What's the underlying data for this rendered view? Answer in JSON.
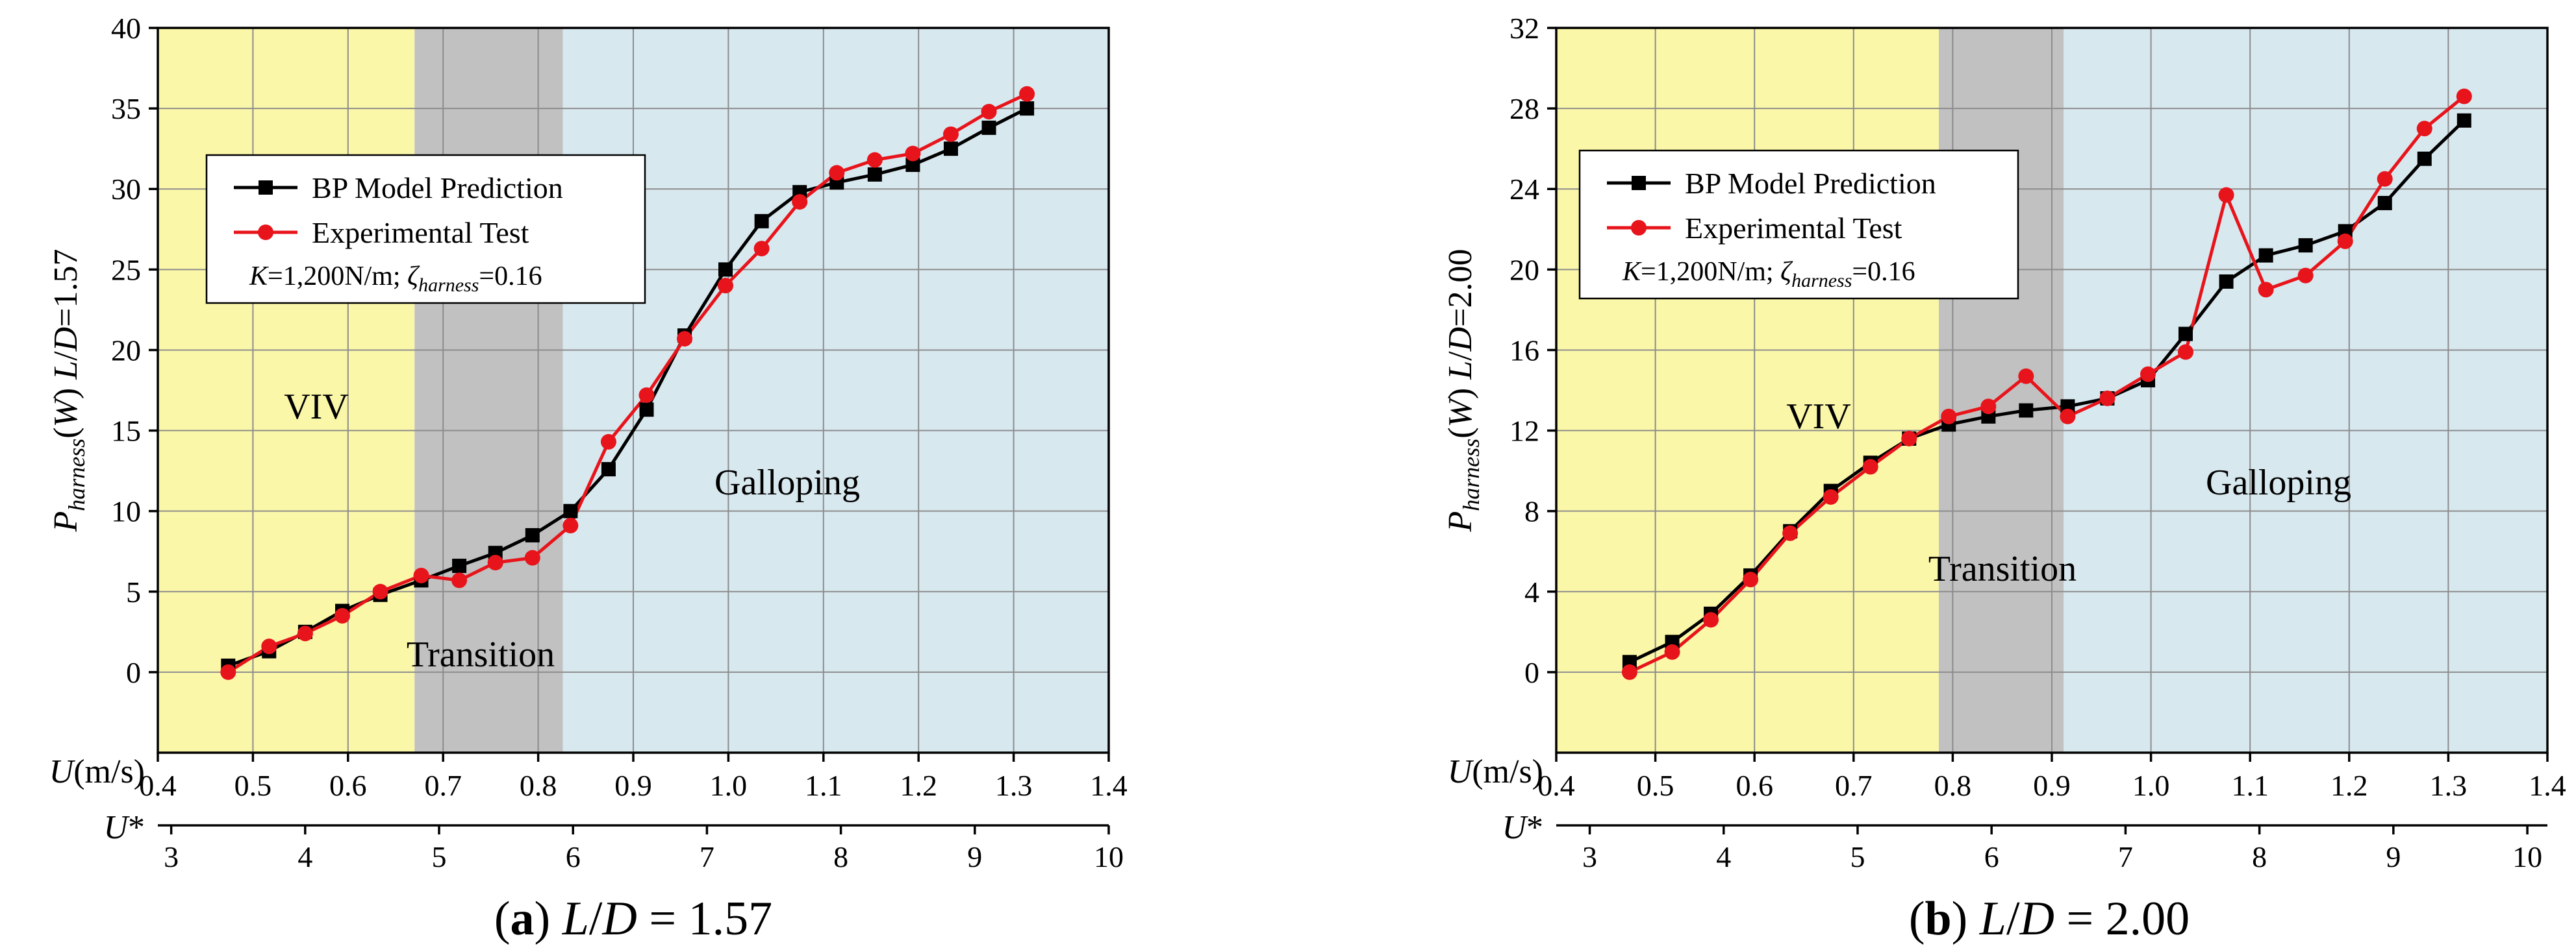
{
  "chart_data": [
    {
      "type": "line",
      "panel": "a",
      "caption": {
        "letter": "(a)",
        "text": "L/D = 1.57"
      },
      "xlabel": "U(m/s)",
      "xlabel2": "U*",
      "ylabel": "P_harness(W)  L/D=1.57",
      "ylim": [
        -5,
        40
      ],
      "yticks": [
        0,
        5,
        10,
        15,
        20,
        25,
        30,
        35,
        40
      ],
      "xlim": [
        0.4,
        1.4
      ],
      "xticks": [
        "0.4",
        "0.5",
        "0.6",
        "0.7",
        "0.8",
        "0.9",
        "1.0",
        "1.1",
        "1.2",
        "1.3",
        "1.4"
      ],
      "x2lim": [
        2.9,
        10.0
      ],
      "x2ticks": [
        "3",
        "4",
        "5",
        "6",
        "7",
        "8",
        "9",
        "10"
      ],
      "regions": [
        {
          "label": "VIV",
          "from": 0.4,
          "to": 0.67,
          "color": "#fbf7a9"
        },
        {
          "label": "Transition",
          "from": 0.67,
          "to": 0.826,
          "color": "#c1c1c1"
        },
        {
          "label": "Galloping",
          "from": 0.826,
          "to": 1.4,
          "color": "#d8e8ef"
        }
      ],
      "legend": {
        "entries": [
          "BP Model Prediction",
          "Experimental Test"
        ],
        "params": "K=1,200N/m;  ζharness=0.16",
        "position": "upper-left"
      },
      "series": [
        {
          "name": "BP Model Prediction",
          "color": "#000000",
          "marker": "square",
          "x": [
            0.474,
            0.517,
            0.555,
            0.594,
            0.634,
            0.677,
            0.717,
            0.755,
            0.794,
            0.834,
            0.874,
            0.914,
            0.954,
            0.997,
            1.035,
            1.075,
            1.114,
            1.154,
            1.194,
            1.234,
            1.274,
            1.314
          ],
          "values": [
            0.4,
            1.3,
            2.5,
            3.8,
            4.8,
            5.7,
            6.6,
            7.4,
            8.5,
            10.0,
            12.6,
            16.3,
            20.9,
            25.0,
            28.0,
            29.8,
            30.4,
            30.9,
            31.5,
            32.5,
            33.8,
            35.0
          ]
        },
        {
          "name": "Experimental Test",
          "color": "#e8141b",
          "marker": "circle",
          "x": [
            0.474,
            0.517,
            0.555,
            0.594,
            0.634,
            0.677,
            0.717,
            0.755,
            0.794,
            0.834,
            0.874,
            0.914,
            0.954,
            0.997,
            1.035,
            1.075,
            1.114,
            1.154,
            1.194,
            1.234,
            1.274,
            1.314
          ],
          "values": [
            0.0,
            1.6,
            2.4,
            3.5,
            5.0,
            6.0,
            5.7,
            6.8,
            7.1,
            9.1,
            14.3,
            17.2,
            20.7,
            24.0,
            26.3,
            29.2,
            31.0,
            31.8,
            32.2,
            33.4,
            34.8,
            35.9
          ]
        }
      ]
    },
    {
      "type": "line",
      "panel": "b",
      "caption": {
        "letter": "(b)",
        "text": "L/D = 2.00"
      },
      "xlabel": "U(m/s)",
      "xlabel2": "U*",
      "ylabel": "P_harness(W)  L/D=2.00",
      "ylim": [
        -4,
        32
      ],
      "yticks": [
        0,
        4,
        8,
        12,
        16,
        20,
        24,
        28,
        32
      ],
      "xlim": [
        0.4,
        1.4
      ],
      "xticks": [
        "0.4",
        "0.5",
        "0.6",
        "0.7",
        "0.8",
        "0.9",
        "1.0",
        "1.1",
        "1.2",
        "1.3",
        "1.4"
      ],
      "x2lim": [
        2.75,
        10.15
      ],
      "x2ticks": [
        "3",
        "4",
        "5",
        "6",
        "7",
        "8",
        "9",
        "10"
      ],
      "regions": [
        {
          "label": "VIV",
          "from": 0.4,
          "to": 0.786,
          "color": "#fbf7a9"
        },
        {
          "label": "Transition",
          "from": 0.786,
          "to": 0.912,
          "color": "#c1c1c1"
        },
        {
          "label": "Galloping",
          "from": 0.912,
          "to": 1.4,
          "color": "#d8e8ef"
        }
      ],
      "legend": {
        "entries": [
          "BP Model Prediction",
          "Experimental Test"
        ],
        "params": "K=1,200N/m;  ζharness=0.16",
        "position": "upper-left"
      },
      "series": [
        {
          "name": "BP Model Prediction",
          "color": "#000000",
          "marker": "square",
          "x": [
            0.474,
            0.517,
            0.556,
            0.596,
            0.636,
            0.677,
            0.717,
            0.756,
            0.796,
            0.836,
            0.874,
            0.916,
            0.956,
            0.997,
            1.035,
            1.076,
            1.116,
            1.156,
            1.196,
            1.236,
            1.276,
            1.316
          ],
          "values": [
            0.5,
            1.5,
            2.9,
            4.8,
            7.0,
            9.0,
            10.4,
            11.6,
            12.3,
            12.7,
            13.0,
            13.2,
            13.6,
            14.5,
            16.8,
            19.4,
            20.7,
            21.2,
            21.9,
            23.3,
            25.5,
            27.4
          ]
        },
        {
          "name": "Experimental Test",
          "color": "#e8141b",
          "marker": "circle",
          "x": [
            0.474,
            0.517,
            0.556,
            0.596,
            0.636,
            0.677,
            0.717,
            0.756,
            0.796,
            0.836,
            0.874,
            0.916,
            0.956,
            0.997,
            1.035,
            1.076,
            1.116,
            1.156,
            1.196,
            1.236,
            1.276,
            1.316
          ],
          "values": [
            0.0,
            1.0,
            2.6,
            4.6,
            6.9,
            8.7,
            10.2,
            11.6,
            12.7,
            13.2,
            14.7,
            12.7,
            13.6,
            14.8,
            15.9,
            23.7,
            19.0,
            19.7,
            21.4,
            24.5,
            27.0,
            28.6
          ]
        }
      ]
    }
  ]
}
